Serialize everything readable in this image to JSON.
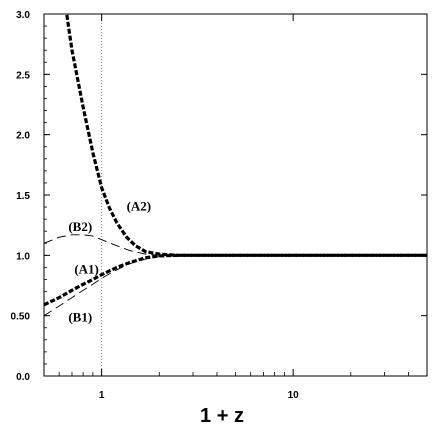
{
  "chart_data": {
    "type": "line",
    "xscale": "log",
    "xlim": [
      0.5,
      50
    ],
    "ylim": [
      0.0,
      3.0
    ],
    "xlabel": "1 + z",
    "ylabel": "",
    "title": "",
    "x_ticks": [
      {
        "value": 1,
        "label": "1"
      },
      {
        "value": 10,
        "label": "10"
      }
    ],
    "y_ticks": [
      {
        "value": 0.0,
        "label": "0.0"
      },
      {
        "value": 0.5,
        "label": "0.50"
      },
      {
        "value": 1.0,
        "label": "1.0"
      },
      {
        "value": 1.5,
        "label": "1.5"
      },
      {
        "value": 2.0,
        "label": "2.0"
      },
      {
        "value": 2.5,
        "label": "2.5"
      },
      {
        "value": 3.0,
        "label": "3.0"
      }
    ],
    "reference_line": {
      "x": 1,
      "style": "dotted"
    },
    "grid": false,
    "series": [
      {
        "name": "(A2)",
        "style": "thick-dashed",
        "x": [
          0.65,
          0.7,
          0.8,
          0.9,
          1.0,
          1.1,
          1.2,
          1.35,
          1.5,
          1.7,
          2.0,
          2.5,
          3.0,
          5.0,
          10.0,
          50.0
        ],
        "y": [
          3.05,
          2.7,
          2.23,
          1.85,
          1.56,
          1.39,
          1.27,
          1.15,
          1.08,
          1.03,
          1.01,
          1.0,
          1.0,
          1.0,
          1.0,
          1.0
        ]
      },
      {
        "name": "(A1)",
        "style": "thick-dashed",
        "x": [
          0.5,
          0.6,
          0.7,
          0.8,
          0.9,
          1.0,
          1.2,
          1.4,
          1.7,
          2.0,
          2.5,
          3.0,
          5.0,
          10.0,
          50.0
        ],
        "y": [
          0.59,
          0.65,
          0.71,
          0.76,
          0.8,
          0.84,
          0.9,
          0.94,
          0.98,
          0.995,
          1.0,
          1.0,
          1.0,
          1.0,
          1.0
        ]
      },
      {
        "name": "(B2)",
        "style": "thin-dashed",
        "x": [
          0.5,
          0.6,
          0.7,
          0.8,
          0.9,
          1.0,
          1.2,
          1.4,
          1.7,
          2.0,
          3.0,
          5.0,
          10.0,
          50.0
        ],
        "y": [
          1.1,
          1.15,
          1.17,
          1.17,
          1.16,
          1.13,
          1.08,
          1.04,
          1.01,
          1.0,
          1.0,
          1.0,
          1.0,
          1.0
        ]
      },
      {
        "name": "(B1)",
        "style": "thin-dashed",
        "x": [
          0.5,
          0.6,
          0.7,
          0.8,
          0.9,
          1.0,
          1.2,
          1.4,
          1.7,
          2.0,
          2.5,
          3.0,
          5.0,
          10.0,
          50.0
        ],
        "y": [
          0.5,
          0.58,
          0.65,
          0.71,
          0.76,
          0.81,
          0.88,
          0.93,
          0.97,
          0.99,
          1.0,
          1.0,
          1.0,
          1.0,
          1.0
        ]
      }
    ],
    "curve_labels": [
      {
        "text": "(A2)",
        "x": 1.35,
        "y": 1.37
      },
      {
        "text": "(B2)",
        "x": 0.67,
        "y": 1.2
      },
      {
        "text": "(A1)",
        "x": 0.72,
        "y": 0.85
      },
      {
        "text": "(B1)",
        "x": 0.67,
        "y": 0.45
      }
    ]
  }
}
